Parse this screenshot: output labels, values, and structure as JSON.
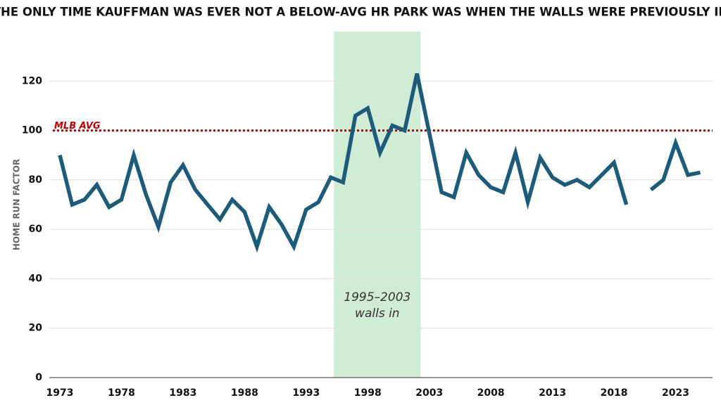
{
  "chart_data": {
    "type": "line",
    "title": "THE ONLY TIME KAUFFMAN WAS EVER NOT A BELOW-AVG HR PARK WAS WHEN THE WALLS WERE PREVIOUSLY IN",
    "y_label": "HOME RUN FACTOR",
    "x": [
      1973,
      1974,
      1975,
      1976,
      1977,
      1978,
      1979,
      1980,
      1981,
      1982,
      1983,
      1984,
      1985,
      1986,
      1987,
      1988,
      1989,
      1990,
      1991,
      1992,
      1993,
      1994,
      1995,
      1996,
      1997,
      1998,
      1999,
      2000,
      2001,
      2002,
      2003,
      2004,
      2005,
      2006,
      2007,
      2008,
      2009,
      2010,
      2011,
      2012,
      2013,
      2014,
      2015,
      2016,
      2017,
      2018,
      2019,
      2020,
      2021,
      2022,
      2023,
      2024,
      2025
    ],
    "values": [
      90,
      70,
      72,
      78,
      69,
      72,
      90,
      74,
      61,
      79,
      86,
      76,
      70,
      64,
      72,
      67,
      53,
      69,
      62,
      53,
      68,
      71,
      81,
      79,
      106,
      109,
      91,
      102,
      100,
      123,
      99,
      75,
      73,
      91,
      82,
      77,
      75,
      91,
      71,
      89,
      81,
      78,
      80,
      77,
      82,
      87,
      70,
      null,
      76,
      80,
      95,
      82,
      83
    ],
    "color": "#1d5b7a",
    "xlim": [
      1973,
      2026
    ],
    "ylim": [
      0,
      140
    ],
    "xticks": [
      1973,
      1978,
      1983,
      1988,
      1993,
      1998,
      2003,
      2008,
      2013,
      2018,
      2023
    ],
    "yticks": [
      0,
      20,
      40,
      60,
      80,
      100,
      120
    ],
    "grid": true,
    "ref_line": {
      "value": 100,
      "label": "MLB AVG",
      "color": "#c00000"
    },
    "shade": {
      "xlim": [
        1995.25,
        2002.3
      ],
      "color": "#d0ecd4",
      "label": [
        "1995–2003",
        "walls in"
      ]
    }
  }
}
